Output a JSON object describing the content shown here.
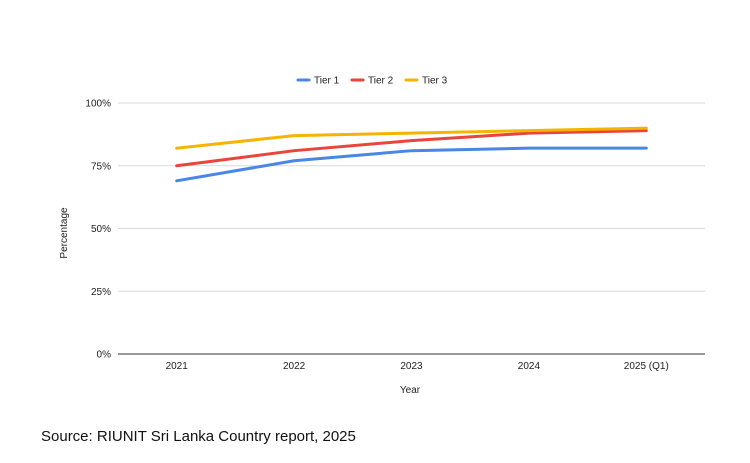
{
  "chart_data": {
    "type": "line",
    "title": "",
    "xlabel": "Year",
    "ylabel": "Percentage",
    "categories": [
      "2021",
      "2022",
      "2023",
      "2024",
      "2025 (Q1)"
    ],
    "ylim": [
      0,
      100
    ],
    "yticks": [
      "0%",
      "25%",
      "50%",
      "75%",
      "100%"
    ],
    "ytick_values": [
      0,
      25,
      50,
      75,
      100
    ],
    "grid": true,
    "legend_position": "top-center",
    "series": [
      {
        "name": "Tier 1",
        "color": "#4a86e8",
        "values": [
          69,
          77,
          81,
          82,
          82
        ]
      },
      {
        "name": "Tier 2",
        "color": "#e8453c",
        "values": [
          75,
          81,
          85,
          88,
          89
        ]
      },
      {
        "name": "Tier 3",
        "color": "#f4b400",
        "values": [
          82,
          87,
          88,
          89,
          90
        ]
      }
    ]
  },
  "source": "Source: RIUNIT Sri Lanka Country report, 2025"
}
